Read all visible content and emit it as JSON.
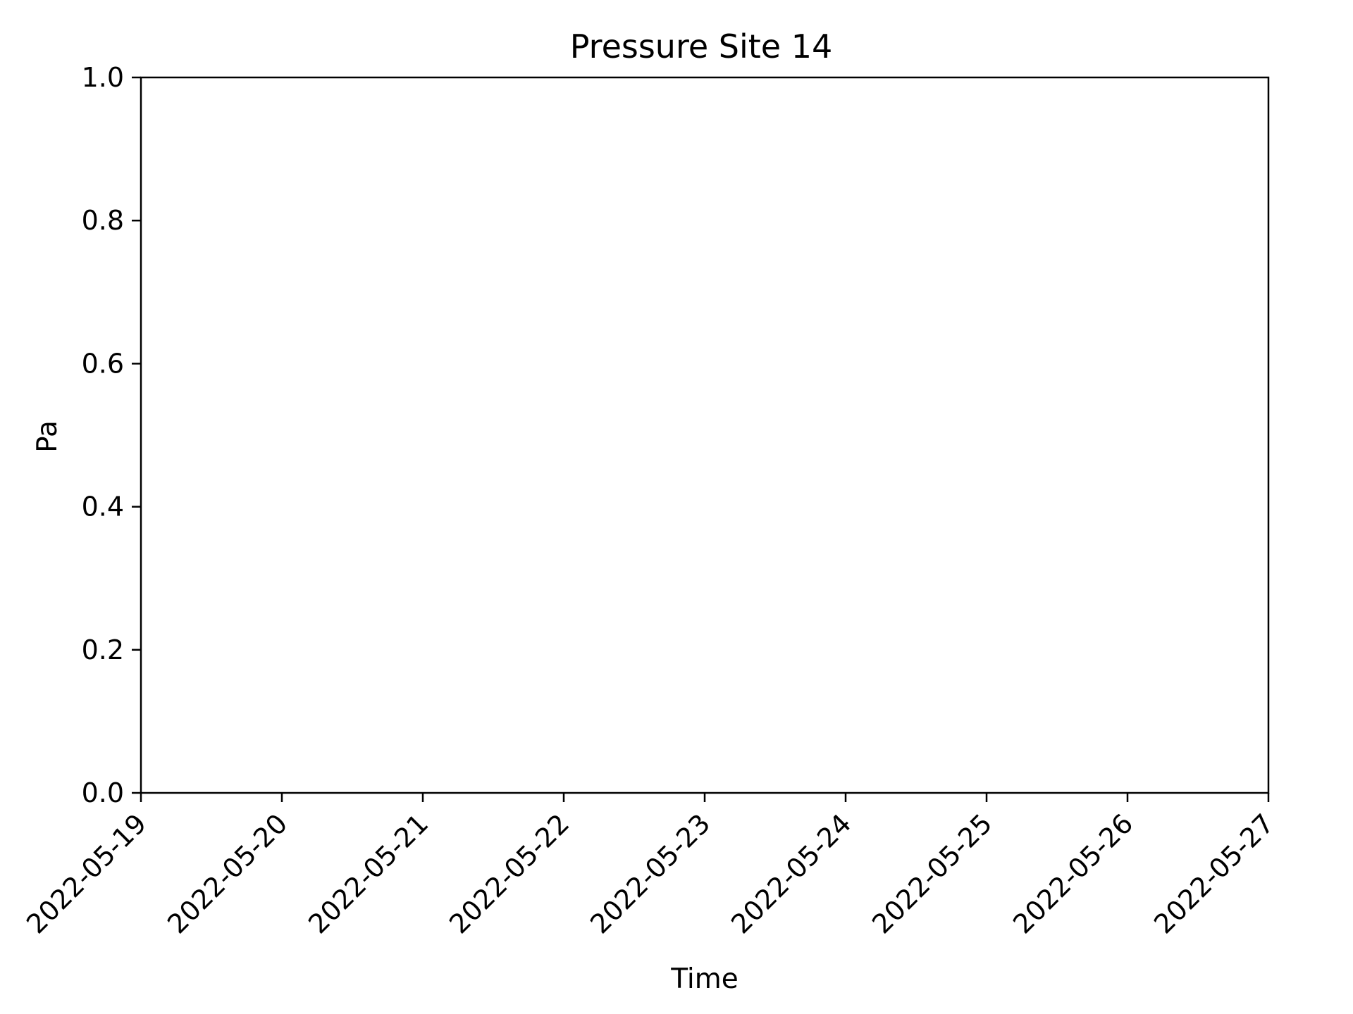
{
  "chart_data": {
    "type": "line",
    "title": "Pressure Site 14",
    "xlabel": "Time",
    "ylabel": "Pa",
    "x_ticks": [
      "2022-05-19",
      "2022-05-20",
      "2022-05-21",
      "2022-05-22",
      "2022-05-23",
      "2022-05-24",
      "2022-05-25",
      "2022-05-26",
      "2022-05-27"
    ],
    "xlim": [
      "2022-05-19",
      "2022-05-27"
    ],
    "y_ticks": [
      "0.0",
      "0.2",
      "0.4",
      "0.6",
      "0.8",
      "1.0"
    ],
    "ylim": [
      0,
      1
    ],
    "series": [],
    "grid": false,
    "colors": {
      "axis": "#000000",
      "background": "#ffffff"
    }
  }
}
